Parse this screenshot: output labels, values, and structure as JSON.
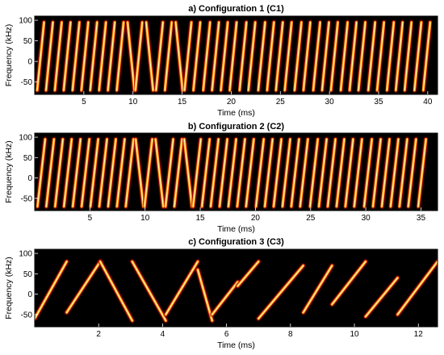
{
  "colors": {
    "background": "#000000",
    "chirp_core": "#fff7b0",
    "chirp_mid": "#ff9a10",
    "chirp_edge": "#b00000"
  },
  "chart_data": [
    {
      "type": "heatmap",
      "title": "a) Configuration 1 (C1)",
      "xlabel": "Time (ms)",
      "ylabel": "Frequency (kHz)",
      "xlim": [
        0,
        41
      ],
      "ylim": [
        -80,
        110
      ],
      "xticks": [
        5,
        10,
        15,
        20,
        25,
        30,
        35,
        40
      ],
      "yticks": [
        100,
        50,
        0,
        -50
      ],
      "chirps": [
        {
          "t": 0.6,
          "slope": 1
        },
        {
          "t": 1.5,
          "slope": 1
        },
        {
          "t": 2.4,
          "slope": 1
        },
        {
          "t": 3.3,
          "slope": 1
        },
        {
          "t": 4.2,
          "slope": 1
        },
        {
          "t": 5.1,
          "slope": 1
        },
        {
          "t": 6.0,
          "slope": 1
        },
        {
          "t": 6.9,
          "slope": 1
        },
        {
          "t": 7.8,
          "slope": 1
        },
        {
          "t": 8.7,
          "slope": 1
        },
        {
          "t": 9.8,
          "slope": -1
        },
        {
          "t": 10.6,
          "slope": 1
        },
        {
          "t": 11.7,
          "slope": -1
        },
        {
          "t": 12.7,
          "slope": 1
        },
        {
          "t": 13.6,
          "slope": 1
        },
        {
          "t": 14.7,
          "slope": -1
        },
        {
          "t": 15.6,
          "slope": 1
        },
        {
          "t": 16.5,
          "slope": 1
        },
        {
          "t": 17.5,
          "slope": 1
        },
        {
          "t": 18.4,
          "slope": 1
        },
        {
          "t": 19.3,
          "slope": 1
        },
        {
          "t": 20.2,
          "slope": 1
        },
        {
          "t": 21.2,
          "slope": 1
        },
        {
          "t": 22.1,
          "slope": 1
        },
        {
          "t": 23.1,
          "slope": 1
        },
        {
          "t": 24.0,
          "slope": 1
        },
        {
          "t": 24.9,
          "slope": 1
        },
        {
          "t": 25.8,
          "slope": 1
        },
        {
          "t": 26.8,
          "slope": 1
        },
        {
          "t": 27.7,
          "slope": 1
        },
        {
          "t": 28.7,
          "slope": 1
        },
        {
          "t": 29.6,
          "slope": 1
        },
        {
          "t": 30.5,
          "slope": 1
        },
        {
          "t": 31.5,
          "slope": 1
        },
        {
          "t": 32.4,
          "slope": 1
        },
        {
          "t": 33.3,
          "slope": 1
        },
        {
          "t": 34.3,
          "slope": 1
        },
        {
          "t": 35.2,
          "slope": 1
        },
        {
          "t": 36.2,
          "slope": 1
        },
        {
          "t": 37.1,
          "slope": 1
        },
        {
          "t": 38.0,
          "slope": 1
        },
        {
          "t": 39.0,
          "slope": 1
        },
        {
          "t": 39.9,
          "slope": 1
        }
      ]
    },
    {
      "type": "heatmap",
      "title": "b) Configuration 2 (C2)",
      "xlabel": "Time (ms)",
      "ylabel": "Frequency (kHz)",
      "xlim": [
        0,
        36.5
      ],
      "ylim": [
        -80,
        110
      ],
      "xticks": [
        5,
        10,
        15,
        20,
        25,
        30,
        35
      ],
      "yticks": [
        100,
        50,
        0,
        -50
      ],
      "chirps": [
        {
          "t": 0.6,
          "slope": 1
        },
        {
          "t": 1.4,
          "slope": 1
        },
        {
          "t": 2.2,
          "slope": 1
        },
        {
          "t": 3.0,
          "slope": 1
        },
        {
          "t": 3.8,
          "slope": 1
        },
        {
          "t": 4.6,
          "slope": 1
        },
        {
          "t": 5.4,
          "slope": 1
        },
        {
          "t": 6.2,
          "slope": 1
        },
        {
          "t": 7.0,
          "slope": 1
        },
        {
          "t": 7.8,
          "slope": 1
        },
        {
          "t": 8.6,
          "slope": 1
        },
        {
          "t": 9.5,
          "slope": -1
        },
        {
          "t": 10.3,
          "slope": 1
        },
        {
          "t": 11.3,
          "slope": -1
        },
        {
          "t": 12.2,
          "slope": 1
        },
        {
          "t": 13.0,
          "slope": 1
        },
        {
          "t": 13.9,
          "slope": -1
        },
        {
          "t": 14.7,
          "slope": 1
        },
        {
          "t": 15.5,
          "slope": 1
        },
        {
          "t": 16.3,
          "slope": 1
        },
        {
          "t": 17.1,
          "slope": 1
        },
        {
          "t": 17.9,
          "slope": 1
        },
        {
          "t": 18.7,
          "slope": 1
        },
        {
          "t": 19.5,
          "slope": 1
        },
        {
          "t": 20.4,
          "slope": 1
        },
        {
          "t": 21.2,
          "slope": 1
        },
        {
          "t": 22.0,
          "slope": 1
        },
        {
          "t": 22.8,
          "slope": 1
        },
        {
          "t": 23.6,
          "slope": 1
        },
        {
          "t": 24.4,
          "slope": 1
        },
        {
          "t": 25.3,
          "slope": 1
        },
        {
          "t": 26.1,
          "slope": 1
        },
        {
          "t": 26.9,
          "slope": 1
        },
        {
          "t": 27.7,
          "slope": 1
        },
        {
          "t": 28.5,
          "slope": 1
        },
        {
          "t": 29.3,
          "slope": 1
        },
        {
          "t": 30.2,
          "slope": 1
        },
        {
          "t": 31.0,
          "slope": 1
        },
        {
          "t": 31.8,
          "slope": 1
        },
        {
          "t": 32.6,
          "slope": 1
        },
        {
          "t": 33.4,
          "slope": 1
        },
        {
          "t": 34.2,
          "slope": 1
        },
        {
          "t": 35.1,
          "slope": 1
        }
      ]
    },
    {
      "type": "heatmap",
      "title": "c) Configuration 3 (C3)",
      "xlabel": "Time (ms)",
      "ylabel": "Frequency (kHz)",
      "xlim": [
        0,
        12.6
      ],
      "ylim": [
        -80,
        110
      ],
      "xticks": [
        2,
        4,
        6,
        8,
        10,
        12
      ],
      "yticks": [
        100,
        50,
        0,
        -50
      ],
      "sweeps": [
        {
          "t0": 0.0,
          "t1": 1.0,
          "f0": -60,
          "f1": 80
        },
        {
          "t0": 1.0,
          "t1": 2.05,
          "f0": -45,
          "f1": 80
        },
        {
          "t0": 2.05,
          "t1": 3.05,
          "f0": 80,
          "f1": -65
        },
        {
          "t0": 3.05,
          "t1": 4.1,
          "f0": 80,
          "f1": -65
        },
        {
          "t0": 4.1,
          "t1": 5.1,
          "f0": -50,
          "f1": 80
        },
        {
          "t0": 5.1,
          "t1": 5.55,
          "f0": 60,
          "f1": -65
        },
        {
          "t0": 5.55,
          "t1": 6.35,
          "f0": -50,
          "f1": 30
        },
        {
          "t0": 6.35,
          "t1": 7.0,
          "f0": 20,
          "f1": 80
        },
        {
          "t0": 7.0,
          "t1": 8.4,
          "f0": -60,
          "f1": 70
        },
        {
          "t0": 8.4,
          "t1": 9.3,
          "f0": -45,
          "f1": 70
        },
        {
          "t0": 9.3,
          "t1": 10.35,
          "f0": -25,
          "f1": 80
        },
        {
          "t0": 10.35,
          "t1": 11.35,
          "f0": -55,
          "f1": 40
        },
        {
          "t0": 11.35,
          "t1": 12.6,
          "f0": -50,
          "f1": 80
        }
      ]
    }
  ]
}
